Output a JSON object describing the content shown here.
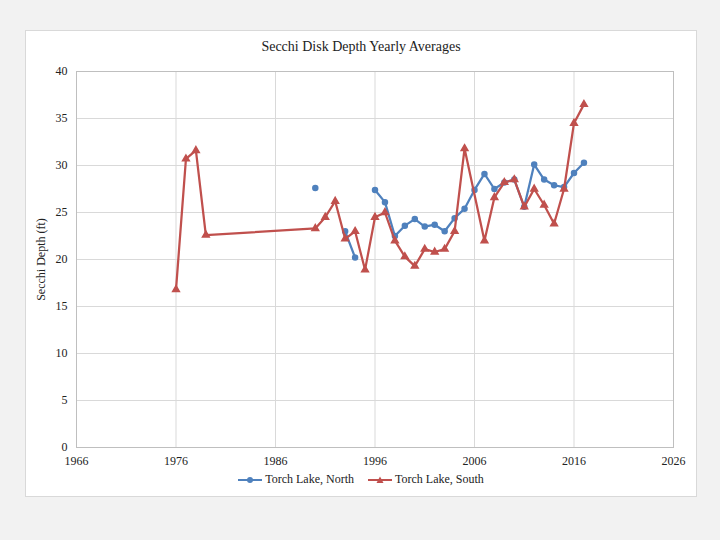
{
  "chart_data": {
    "type": "line",
    "title": "Secchi Disk Depth Yearly Averages",
    "y_label": "Secchi Depth (ft)",
    "xlim": [
      1966,
      2026
    ],
    "xticks": [
      1966,
      1976,
      1986,
      1996,
      2006,
      2016,
      2026
    ],
    "ylim": [
      0,
      40
    ],
    "yticks": [
      0,
      5,
      10,
      15,
      20,
      25,
      30,
      35,
      40
    ],
    "grid": true,
    "legend": "bottom",
    "series": [
      {
        "name": "Torch Lake, North",
        "color": "#4f81bd",
        "marker": "circle",
        "x": [
          1990,
          1991,
          1992,
          1993,
          1994,
          1995,
          1996,
          1997,
          1998,
          1999,
          2000,
          2001,
          2002,
          2003,
          2004,
          2005,
          2006,
          2007,
          2008,
          2009,
          2010,
          2011,
          2012,
          2013,
          2014,
          2015,
          2016,
          2017
        ],
        "values": [
          27.6,
          null,
          null,
          23.0,
          20.2,
          null,
          27.4,
          26.1,
          22.5,
          23.6,
          24.3,
          23.5,
          23.7,
          23.0,
          24.4,
          25.4,
          27.4,
          29.1,
          27.5,
          28.2,
          28.5,
          25.6,
          30.1,
          28.5,
          27.9,
          27.7,
          29.2,
          30.3
        ]
      },
      {
        "name": "Torch Lake, South",
        "color": "#c0504d",
        "marker": "triangle",
        "x": [
          1976,
          1977,
          1978,
          1979,
          1990,
          1991,
          1992,
          1993,
          1994,
          1995,
          1996,
          1997,
          1998,
          1999,
          2000,
          2001,
          2002,
          2003,
          2004,
          2005,
          2007,
          2008,
          2009,
          2010,
          2011,
          2012,
          2013,
          2014,
          2015,
          2016,
          2017
        ],
        "values": [
          16.8,
          30.7,
          31.6,
          22.6,
          23.3,
          24.5,
          26.2,
          22.2,
          23.0,
          18.9,
          24.5,
          25.0,
          22.0,
          20.3,
          19.3,
          21.1,
          20.8,
          21.1,
          23.0,
          31.8,
          22.0,
          26.6,
          28.2,
          28.5,
          25.6,
          27.5,
          25.8,
          23.8,
          27.5,
          34.5,
          36.5
        ]
      }
    ]
  }
}
